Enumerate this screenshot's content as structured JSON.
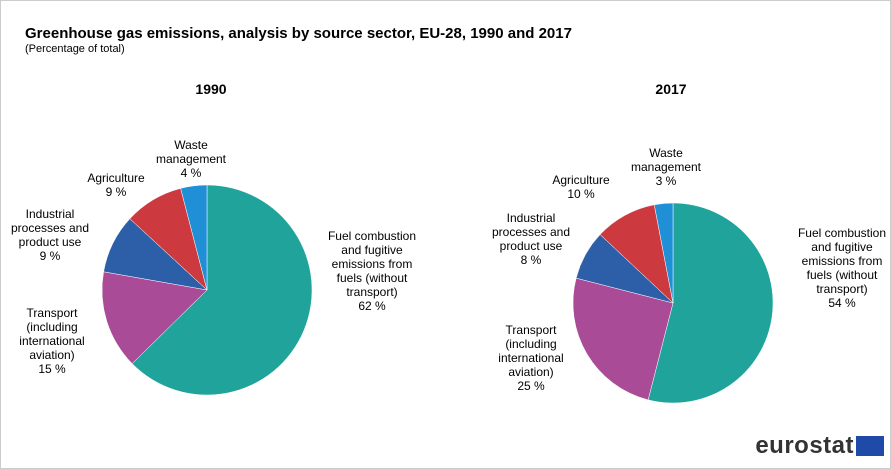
{
  "title": "Greenhouse gas emissions, analysis by source sector, EU-28, 1990 and 2017",
  "subtitle": "(Percentage of total)",
  "logo": "eurostat",
  "chart_data": [
    {
      "type": "pie",
      "title": "1990",
      "categories": [
        "Fuel combustion and fugitive emissions from fuels (without transport)",
        "Transport (including international aviation)",
        "Industrial processes and product use",
        "Agriculture",
        "Waste management"
      ],
      "values": [
        62,
        15,
        9,
        9,
        4
      ],
      "value_labels": [
        "62 %",
        "15 %",
        "9 %",
        "9 %",
        "4 %"
      ],
      "colors": [
        "#1fa39a",
        "#a94b96",
        "#2d5ea8",
        "#cc3a3f",
        "#1f8fd6"
      ]
    },
    {
      "type": "pie",
      "title": "2017",
      "categories": [
        "Fuel combustion and fugitive emissions from fuels (without transport)",
        "Transport (including international aviation)",
        "Industrial processes and product use",
        "Agriculture",
        "Waste management"
      ],
      "values": [
        54,
        25,
        8,
        10,
        3
      ],
      "value_labels": [
        "54 %",
        "25 %",
        "8 %",
        "10 %",
        "3 %"
      ],
      "colors": [
        "#1fa39a",
        "#a94b96",
        "#2d5ea8",
        "#cc3a3f",
        "#1f8fd6"
      ]
    }
  ]
}
